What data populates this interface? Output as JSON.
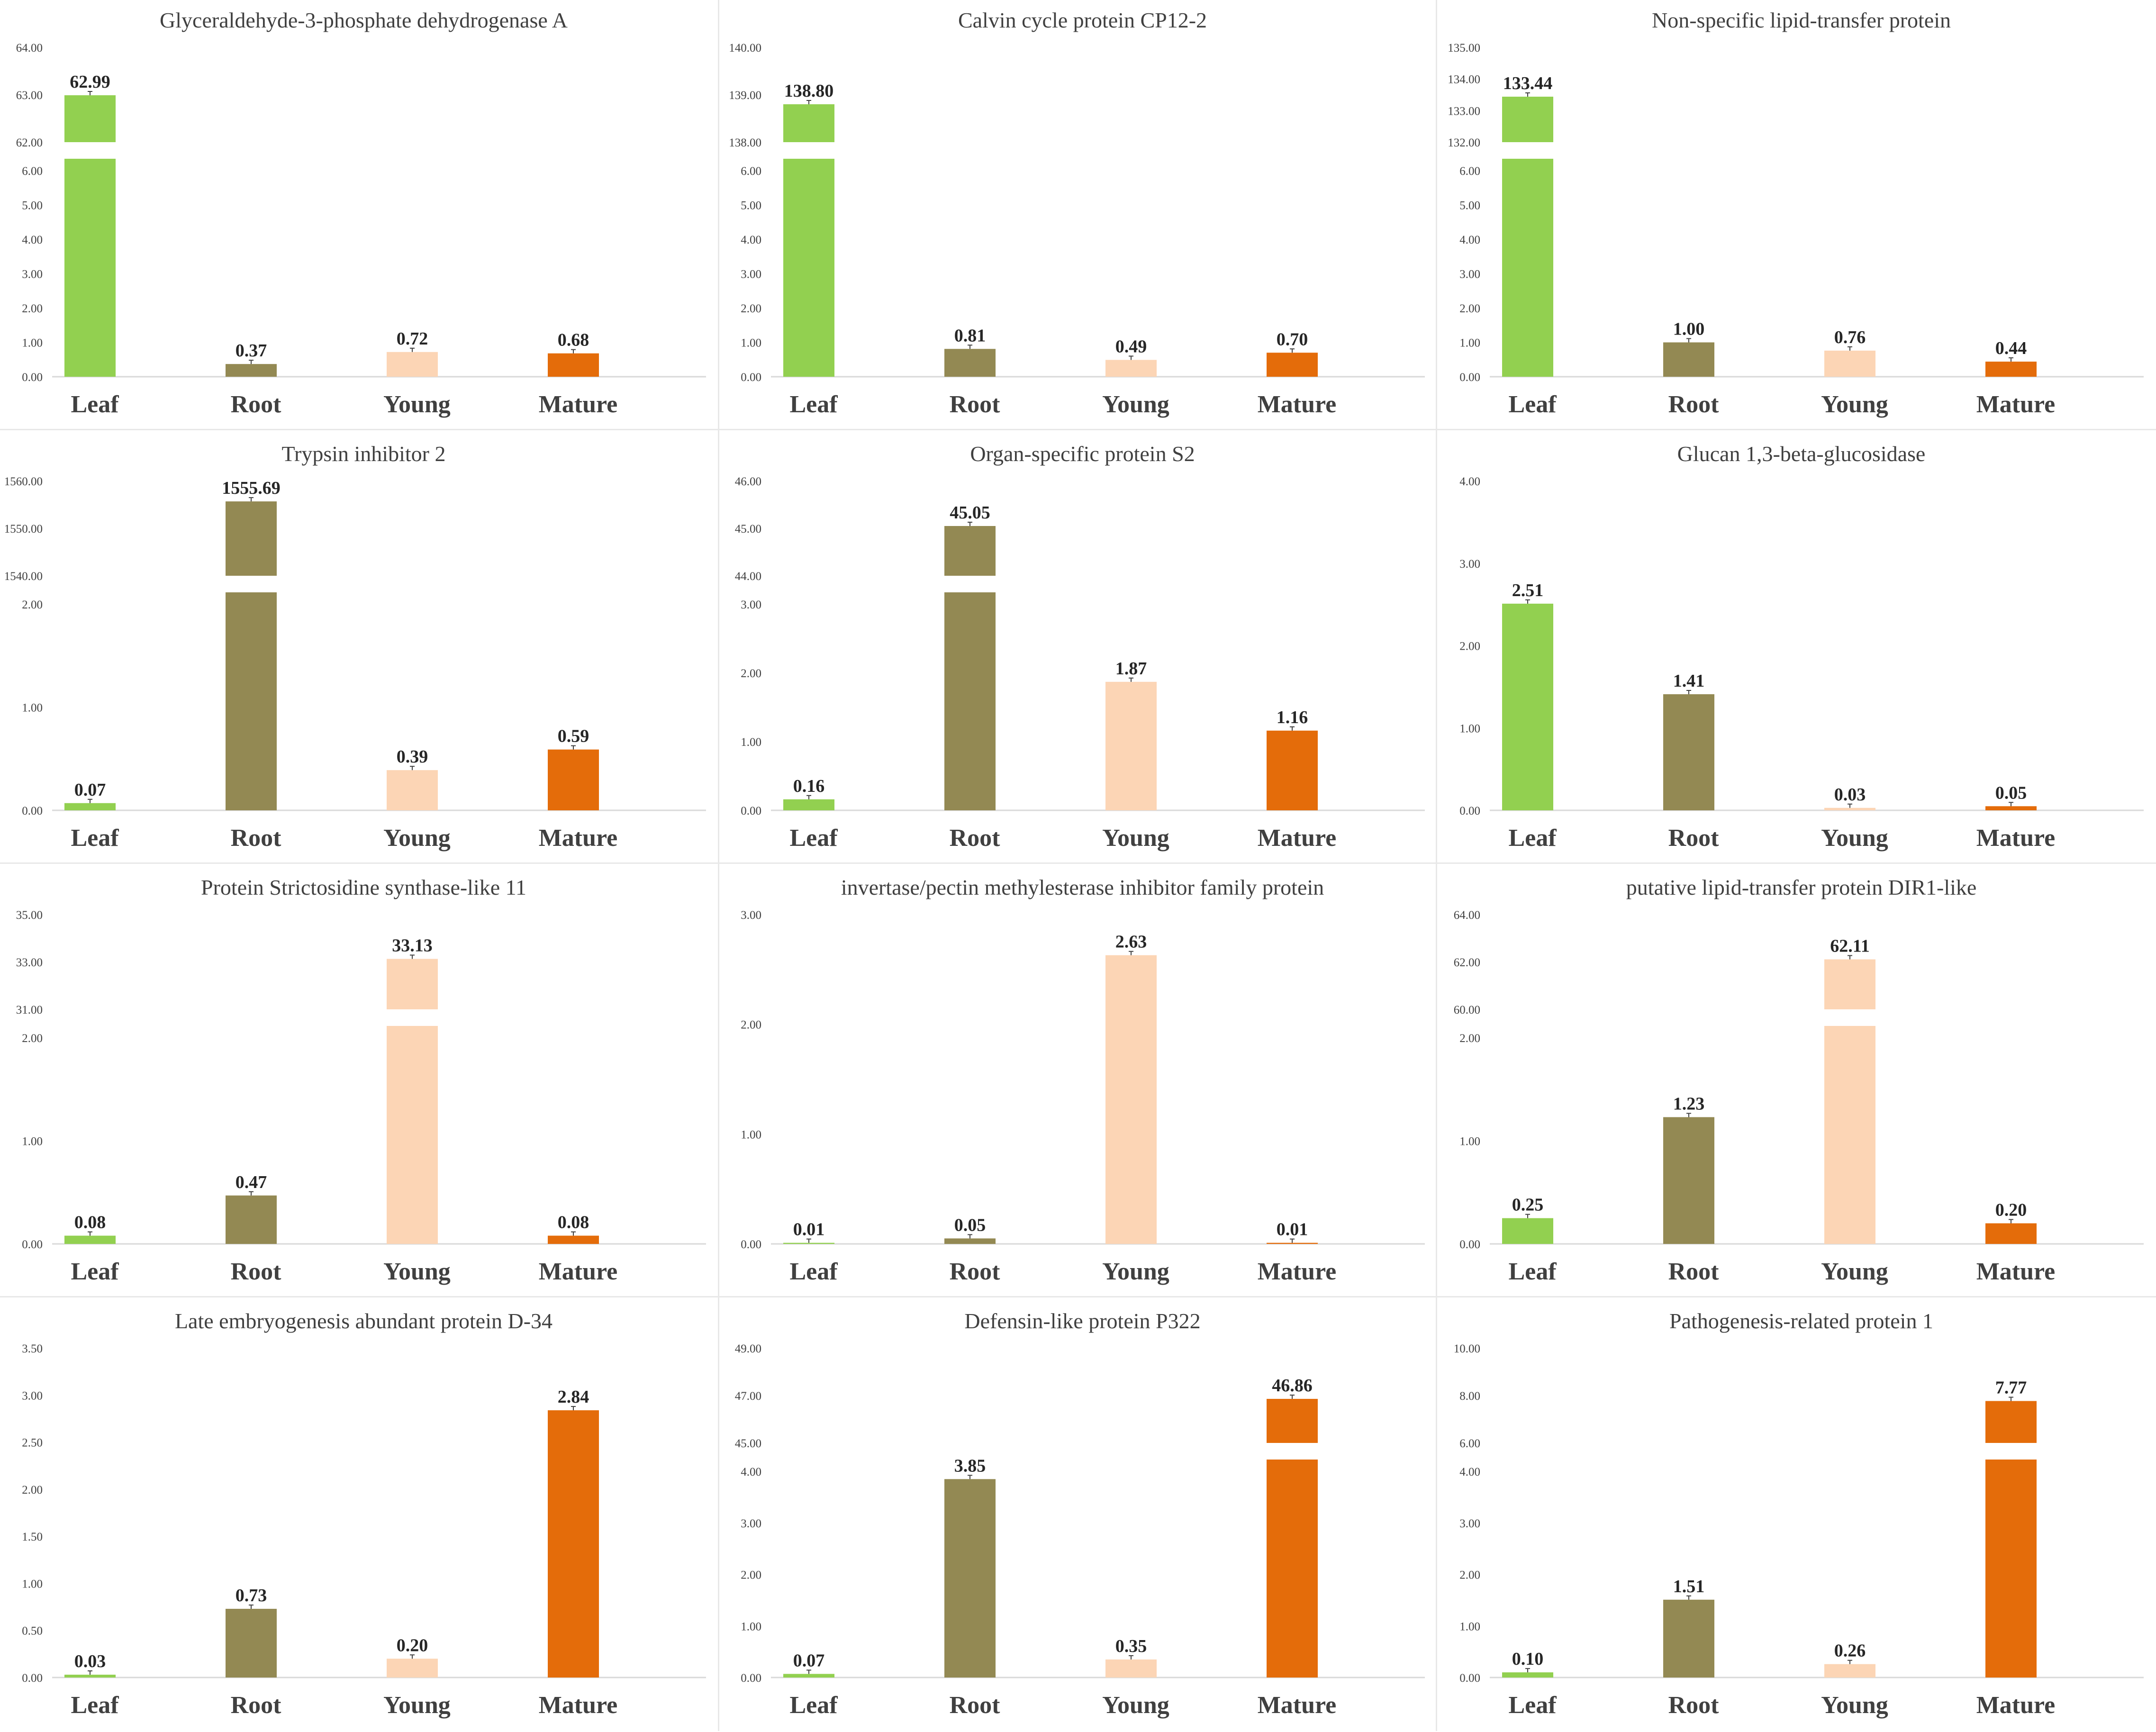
{
  "colors": {
    "Leaf": "#92d050",
    "Root": "#938953",
    "Young": "#fcd5b5",
    "Mature": "#e46c0a",
    "axis": "#404040",
    "label": "#262626"
  },
  "chart_data": [
    {
      "type": "bar",
      "title": "Glyceraldehyde-3-phosphate dehydrogenase A",
      "categories": [
        "Leaf",
        "Root",
        "Young",
        "Mature"
      ],
      "values": [
        62.99,
        0.37,
        0.72,
        0.68
      ],
      "value_labels": [
        "62.99",
        "0.37",
        "0.72",
        "0.68"
      ],
      "axis_break": true,
      "lower_ticks": [
        "0.00",
        "1.00",
        "2.00",
        "3.00",
        "4.00",
        "5.00",
        "6.00"
      ],
      "upper_ticks": [
        "62.00",
        "63.00",
        "64.00"
      ],
      "ylim": [
        0,
        64
      ]
    },
    {
      "type": "bar",
      "title": "Calvin cycle protein CP12-2",
      "categories": [
        "Leaf",
        "Root",
        "Young",
        "Mature"
      ],
      "values": [
        138.8,
        0.81,
        0.49,
        0.7
      ],
      "value_labels": [
        "138.80",
        "0.81",
        "0.49",
        "0.70"
      ],
      "axis_break": true,
      "lower_ticks": [
        "0.00",
        "1.00",
        "2.00",
        "3.00",
        "4.00",
        "5.00",
        "6.00"
      ],
      "upper_ticks": [
        "138.00",
        "139.00",
        "140.00"
      ],
      "ylim": [
        0,
        140
      ]
    },
    {
      "type": "bar",
      "title": "Non-specific lipid-transfer protein",
      "categories": [
        "Leaf",
        "Root",
        "Young",
        "Mature"
      ],
      "values": [
        133.44,
        1.0,
        0.76,
        0.44
      ],
      "value_labels": [
        "133.44",
        "1.00",
        "0.76",
        "0.44"
      ],
      "axis_break": true,
      "lower_ticks": [
        "0.00",
        "1.00",
        "2.00",
        "3.00",
        "4.00",
        "5.00",
        "6.00"
      ],
      "upper_ticks": [
        "132.00",
        "133.00",
        "134.00",
        "135.00"
      ],
      "ylim": [
        0,
        135
      ]
    },
    {
      "type": "bar",
      "title": "Trypsin inhibitor 2",
      "categories": [
        "Leaf",
        "Root",
        "Young",
        "Mature"
      ],
      "values": [
        0.07,
        1555.69,
        0.39,
        0.59
      ],
      "value_labels": [
        "0.07",
        "1555.69",
        "0.39",
        "0.59"
      ],
      "axis_break": true,
      "lower_ticks": [
        "0.00",
        "1.00",
        "2.00"
      ],
      "upper_ticks": [
        "1540.00",
        "1550.00",
        "1560.00"
      ],
      "ylim": [
        0,
        1560
      ]
    },
    {
      "type": "bar",
      "title": "Organ-specific protein S2",
      "categories": [
        "Leaf",
        "Root",
        "Young",
        "Mature"
      ],
      "values": [
        0.16,
        45.05,
        1.87,
        1.16
      ],
      "value_labels": [
        "0.16",
        "45.05",
        "1.87",
        "1.16"
      ],
      "axis_break": true,
      "lower_ticks": [
        "0.00",
        "1.00",
        "2.00",
        "3.00"
      ],
      "upper_ticks": [
        "44.00",
        "45.00",
        "46.00"
      ],
      "ylim": [
        0,
        46
      ]
    },
    {
      "type": "bar",
      "title": "Glucan 1,3-beta-glucosidase",
      "categories": [
        "Leaf",
        "Root",
        "Young",
        "Mature"
      ],
      "values": [
        2.51,
        1.41,
        0.03,
        0.05
      ],
      "value_labels": [
        "2.51",
        "1.41",
        "0.03",
        "0.05"
      ],
      "axis_break": false,
      "lower_ticks": [
        "0.00",
        "1.00",
        "2.00",
        "3.00",
        "4.00"
      ],
      "upper_ticks": [],
      "ylim": [
        0,
        4
      ]
    },
    {
      "type": "bar",
      "title": "Protein Strictosidine synthase-like 11",
      "categories": [
        "Leaf",
        "Root",
        "Young",
        "Mature"
      ],
      "values": [
        0.08,
        0.47,
        33.13,
        0.08
      ],
      "value_labels": [
        "0.08",
        "0.47",
        "33.13",
        "0.08"
      ],
      "axis_break": true,
      "lower_ticks": [
        "0.00",
        "1.00",
        "2.00"
      ],
      "upper_ticks": [
        "31.00",
        "33.00",
        "35.00"
      ],
      "ylim": [
        0,
        35
      ]
    },
    {
      "type": "bar",
      "title": "invertase/pectin methylesterase inhibitor family protein",
      "categories": [
        "Leaf",
        "Root",
        "Young",
        "Mature"
      ],
      "values": [
        0.01,
        0.05,
        2.63,
        0.01
      ],
      "value_labels": [
        "0.01",
        "0.05",
        "2.63",
        "0.01"
      ],
      "axis_break": false,
      "lower_ticks": [
        "0.00",
        "1.00",
        "2.00",
        "3.00"
      ],
      "upper_ticks": [],
      "ylim": [
        0,
        3
      ]
    },
    {
      "type": "bar",
      "title": "putative lipid-transfer protein DIR1-like",
      "categories": [
        "Leaf",
        "Root",
        "Young",
        "Mature"
      ],
      "values": [
        0.25,
        1.23,
        62.11,
        0.2
      ],
      "value_labels": [
        "0.25",
        "1.23",
        "62.11",
        "0.20"
      ],
      "axis_break": true,
      "lower_ticks": [
        "0.00",
        "1.00",
        "2.00"
      ],
      "upper_ticks": [
        "60.00",
        "62.00",
        "64.00"
      ],
      "ylim": [
        0,
        64
      ]
    },
    {
      "type": "bar",
      "title": "Late embryogenesis abundant protein D-34",
      "categories": [
        "Leaf",
        "Root",
        "Young",
        "Mature"
      ],
      "values": [
        0.03,
        0.73,
        0.2,
        2.84
      ],
      "value_labels": [
        "0.03",
        "0.73",
        "0.20",
        "2.84"
      ],
      "axis_break": false,
      "lower_ticks": [
        "0.00",
        "0.50",
        "1.00",
        "1.50",
        "2.00",
        "2.50",
        "3.00",
        "3.50"
      ],
      "upper_ticks": [],
      "ylim": [
        0,
        3.5
      ]
    },
    {
      "type": "bar",
      "title": "Defensin-like protein P322",
      "categories": [
        "Leaf",
        "Root",
        "Young",
        "Mature"
      ],
      "values": [
        0.07,
        3.85,
        0.35,
        46.86
      ],
      "value_labels": [
        "0.07",
        "3.85",
        "0.35",
        "46.86"
      ],
      "axis_break": true,
      "lower_ticks": [
        "0.00",
        "1.00",
        "2.00",
        "3.00",
        "4.00"
      ],
      "upper_ticks": [
        "45.00",
        "47.00",
        "49.00"
      ],
      "ylim": [
        0,
        49
      ]
    },
    {
      "type": "bar",
      "title": "Pathogenesis-related protein 1",
      "categories": [
        "Leaf",
        "Root",
        "Young",
        "Mature"
      ],
      "values": [
        0.1,
        1.51,
        0.26,
        7.77
      ],
      "value_labels": [
        "0.10",
        "1.51",
        "0.26",
        "7.77"
      ],
      "axis_break": true,
      "lower_ticks": [
        "0.00",
        "1.00",
        "2.00",
        "3.00",
        "4.00"
      ],
      "upper_ticks": [
        "6.00",
        "8.00",
        "10.00"
      ],
      "ylim": [
        0,
        10
      ]
    }
  ]
}
